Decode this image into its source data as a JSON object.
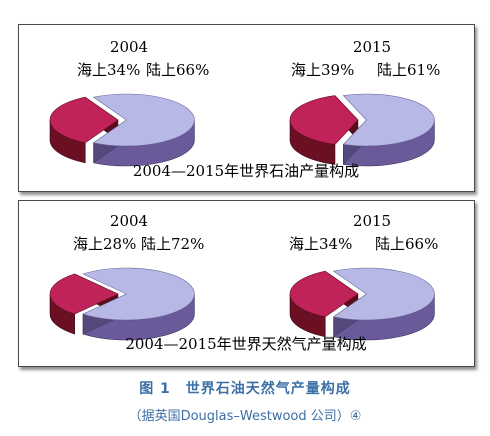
{
  "chart_data": [
    {
      "type": "pie",
      "title": "2004—2015年世界石油产量构成",
      "pies": [
        {
          "year": "2004",
          "slices": [
            {
              "label": "海上",
              "value": 34,
              "text": "海上34%",
              "color": "#c0235a"
            },
            {
              "label": "陆上",
              "value": 66,
              "text": "陆上66%",
              "color": "#b8b8e6"
            }
          ]
        },
        {
          "year": "2015",
          "slices": [
            {
              "label": "海上",
              "value": 39,
              "text": "海上39%",
              "color": "#c0235a"
            },
            {
              "label": "陆上",
              "value": 61,
              "text": "陆上61%",
              "color": "#b8b8e6"
            }
          ]
        }
      ]
    },
    {
      "type": "pie",
      "title": "2004—2015年世界天然气产量构成",
      "pies": [
        {
          "year": "2004",
          "slices": [
            {
              "label": "海上",
              "value": 28,
              "text": "海上28%",
              "color": "#c0235a"
            },
            {
              "label": "陆上",
              "value": 72,
              "text": "陆上72%",
              "color": "#b8b8e6"
            }
          ]
        },
        {
          "year": "2015",
          "slices": [
            {
              "label": "海上",
              "value": 34,
              "text": "海上34%",
              "color": "#c0235a"
            },
            {
              "label": "陆上",
              "value": 66,
              "text": "陆上66%",
              "color": "#b8b8e6"
            }
          ]
        }
      ]
    }
  ],
  "figure": {
    "title": "图 1　世界石油天然气产量构成",
    "source": "（据英国Douglas–Westwood 公司）④"
  },
  "colors": {
    "offshore_top": "#c0235a",
    "offshore_side": "#6b0f22",
    "onshore_top": "#b8b8e6",
    "onshore_side": "#6a5a9a",
    "caption": "#3c6fa5"
  }
}
